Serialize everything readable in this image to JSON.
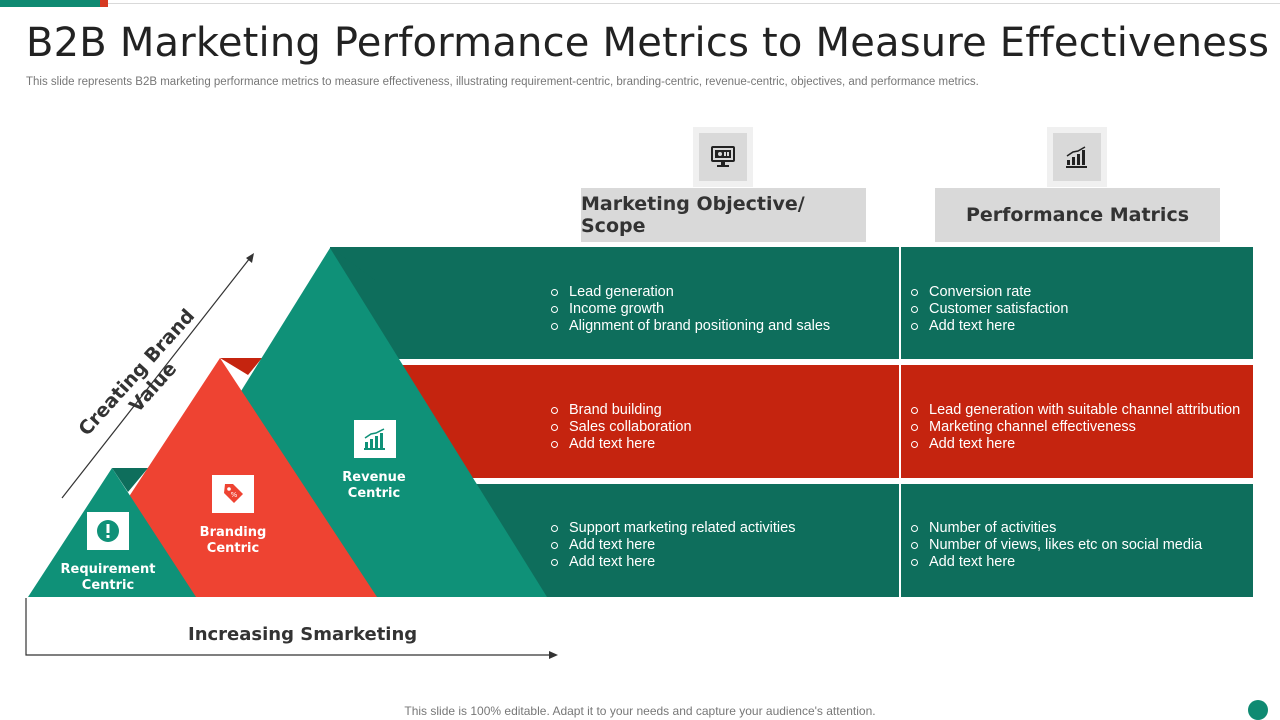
{
  "title": "B2B Marketing Performance Metrics to Measure Effectiveness",
  "subtitle": "This slide represents B2B marketing performance metrics to measure effectiveness, illustrating requirement-centric, branding-centric, revenue-centric, objectives, and performance metrics.",
  "columns": {
    "objective": {
      "label": "Marketing Objective/ Scope",
      "icon": "monitor-icon"
    },
    "metrics": {
      "label": "Performance Matrics",
      "icon": "bar-chart-icon"
    }
  },
  "colors": {
    "teal": "#0f8a72",
    "teal_dark": "#0e6e5c",
    "red": "#c5240f",
    "orange_red": "#ee4332",
    "gray": "#d9d9d9"
  },
  "levels": [
    {
      "label_line1": "Revenue",
      "label_line2": "Centric",
      "icon": "growth-chart-icon",
      "objectives": [
        "Lead generation",
        "Income growth",
        "Alignment of brand positioning and sales"
      ],
      "metrics": [
        "Conversion rate",
        "Customer satisfaction",
        "Add text here"
      ]
    },
    {
      "label_line1": "Branding",
      "label_line2": "Centric",
      "icon": "price-tag-icon",
      "objectives": [
        "Brand building",
        "Sales collaboration",
        "Add text here"
      ],
      "metrics": [
        "Lead generation with suitable channel attribution",
        "Marketing channel effectiveness",
        "Add text here"
      ]
    },
    {
      "label_line1": "Requirement",
      "label_line2": "Centric",
      "icon": "exclamation-icon",
      "objectives": [
        "Support marketing related activities",
        "Add text here",
        "Add text here"
      ],
      "metrics": [
        "Number of activities",
        "Number of views, likes etc on social media",
        "Add text here"
      ]
    }
  ],
  "axis": {
    "x_label": "Increasing Smarketing",
    "y_label": "Creating Brand Value"
  },
  "footer": "This slide is 100% editable. Adapt it to your needs and capture your audience's attention."
}
